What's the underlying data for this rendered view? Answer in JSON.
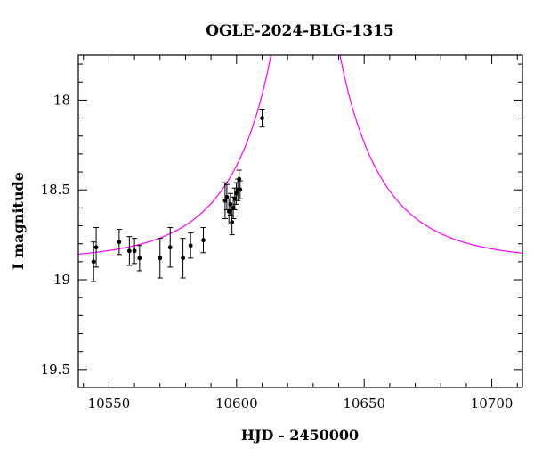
{
  "chart_data": {
    "type": "scatter",
    "title": "OGLE-2024-BLG-1315",
    "xlabel": "HJD - 2450000",
    "ylabel": "I magnitude",
    "xlim": [
      10538,
      10712
    ],
    "ylim": [
      19.6,
      17.75
    ],
    "y_inverted": true,
    "grid": false,
    "xticks": [
      10550,
      10600,
      10650,
      10700
    ],
    "xtick_labels": [
      "10550",
      "10600",
      "10650",
      "10700"
    ],
    "yticks": [
      18,
      18.5,
      19,
      19.5
    ],
    "ytick_labels": [
      "18",
      "18.5",
      "19",
      "19.5"
    ],
    "colors": {
      "data": "#000000",
      "model": "#ff00ff",
      "axes": "#000000"
    },
    "series": [
      {
        "kind": "data",
        "points": [
          {
            "x": 10544.0,
            "y": 18.9,
            "err": 0.11
          },
          {
            "x": 10545.0,
            "y": 18.82,
            "err": 0.11
          },
          {
            "x": 10554.0,
            "y": 18.79,
            "err": 0.07
          },
          {
            "x": 10558.0,
            "y": 18.84,
            "err": 0.08
          },
          {
            "x": 10560.0,
            "y": 18.84,
            "err": 0.07
          },
          {
            "x": 10562.0,
            "y": 18.88,
            "err": 0.07
          },
          {
            "x": 10570.0,
            "y": 18.88,
            "err": 0.11
          },
          {
            "x": 10574.0,
            "y": 18.82,
            "err": 0.11
          },
          {
            "x": 10579.0,
            "y": 18.88,
            "err": 0.11
          },
          {
            "x": 10582.0,
            "y": 18.81,
            "err": 0.07
          },
          {
            "x": 10587.0,
            "y": 18.78,
            "err": 0.07
          },
          {
            "x": 10595.5,
            "y": 18.56,
            "err": 0.1
          },
          {
            "x": 10596.2,
            "y": 18.54,
            "err": 0.07
          },
          {
            "x": 10597.0,
            "y": 18.62,
            "err": 0.07
          },
          {
            "x": 10597.6,
            "y": 18.58,
            "err": 0.06
          },
          {
            "x": 10598.2,
            "y": 18.68,
            "err": 0.07
          },
          {
            "x": 10598.7,
            "y": 18.6,
            "err": 0.06
          },
          {
            "x": 10599.3,
            "y": 18.55,
            "err": 0.06
          },
          {
            "x": 10599.9,
            "y": 18.52,
            "err": 0.06
          },
          {
            "x": 10600.5,
            "y": 18.5,
            "err": 0.06
          },
          {
            "x": 10601.0,
            "y": 18.44,
            "err": 0.05
          },
          {
            "x": 10601.4,
            "y": 18.5,
            "err": 0.05
          },
          {
            "x": 10610.0,
            "y": 18.1,
            "err": 0.05
          }
        ]
      },
      {
        "kind": "model",
        "params": {
          "t0": 10627.0,
          "tE": 37.0,
          "u0": 0.004,
          "I_base": 18.895
        }
      }
    ]
  }
}
